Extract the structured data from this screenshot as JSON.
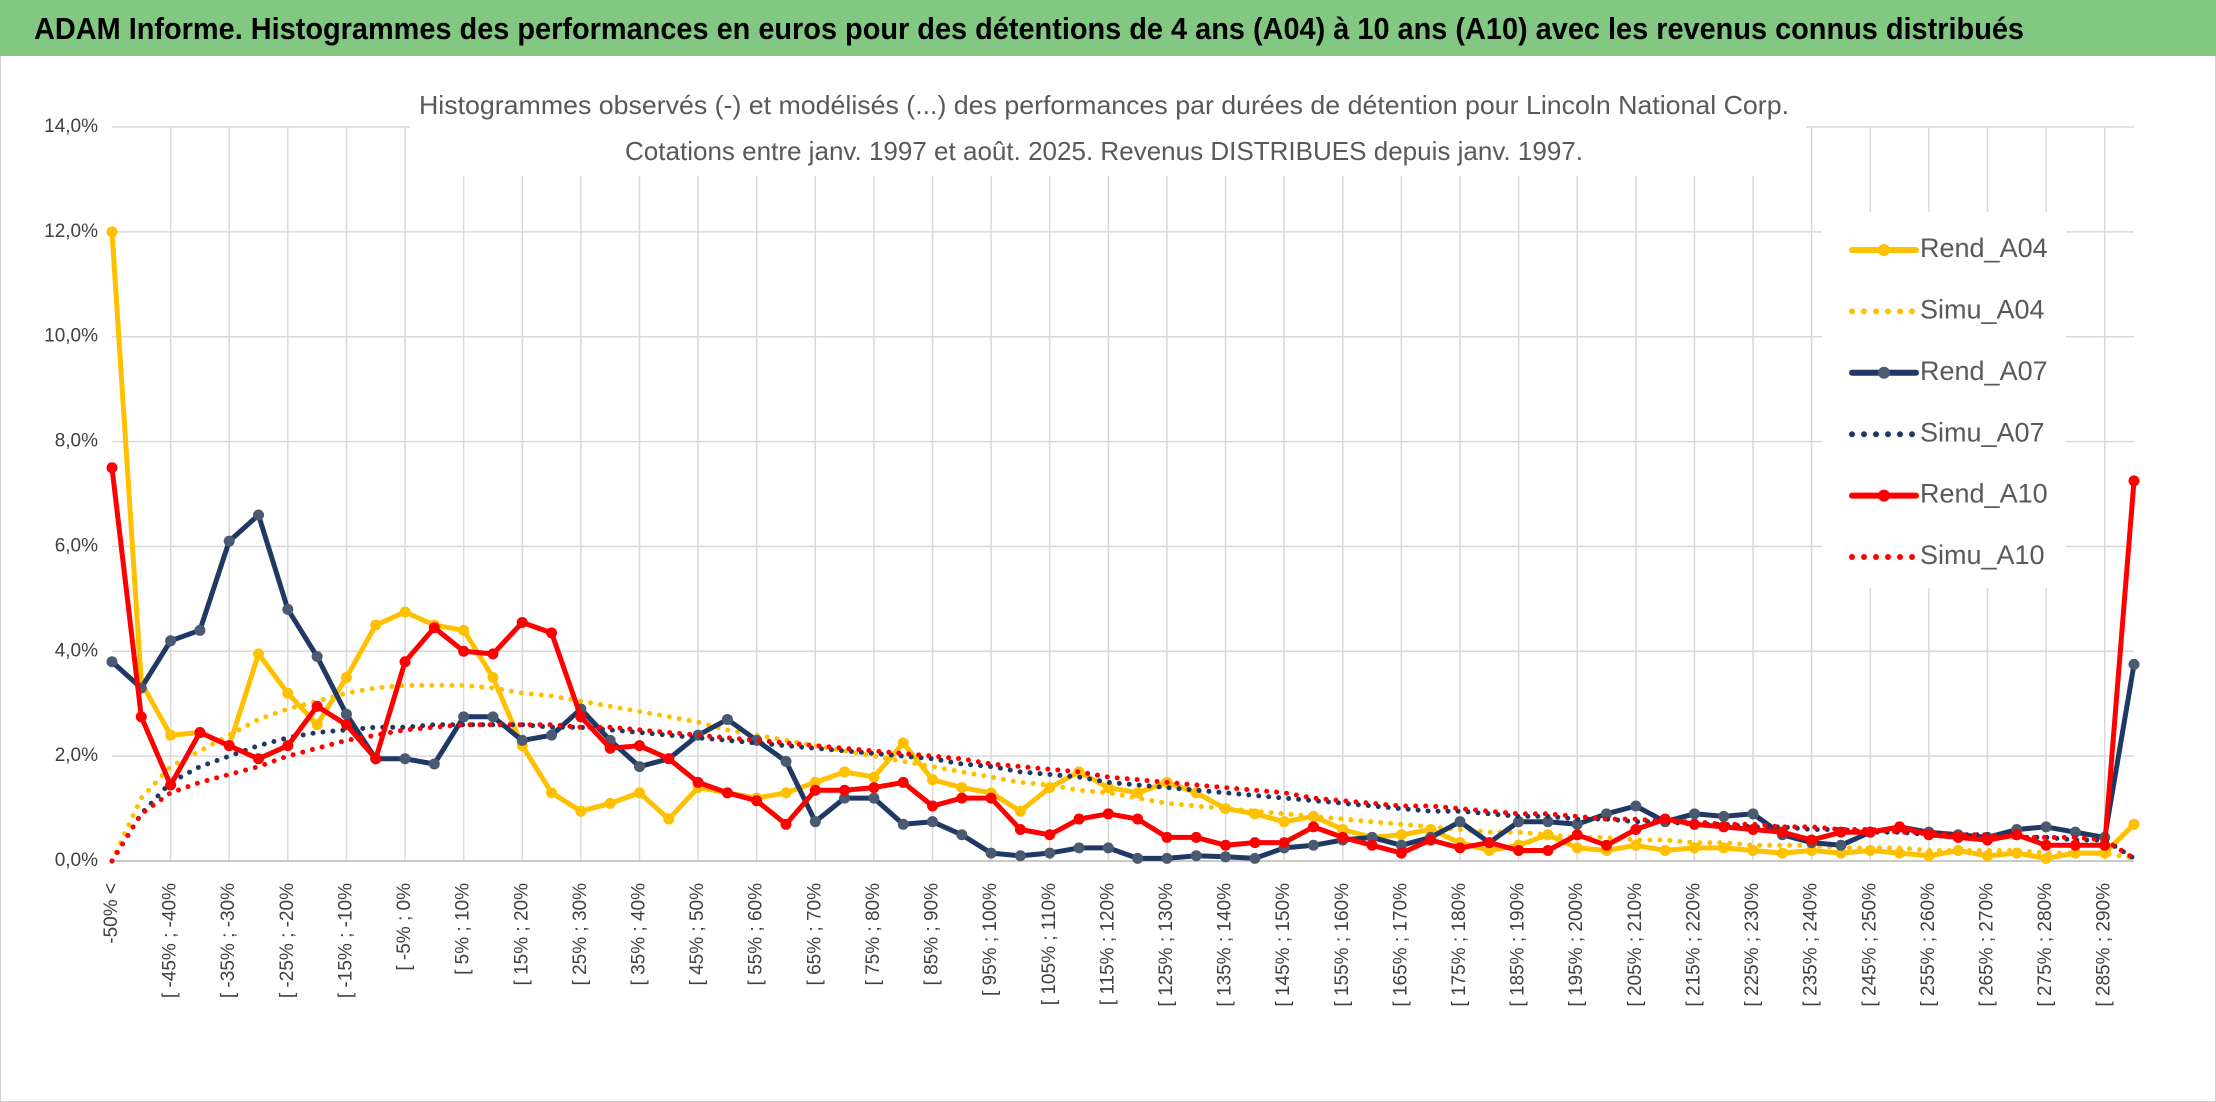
{
  "header": {
    "title": "ADAM Informe. Histogrammes des performances en euros pour des détentions de 4 ans (A04) à 10 ans (A10) avec les revenus connus distribués"
  },
  "chart_data": {
    "type": "line",
    "title": "Histogrammes observés (-) et modélisés (...) des performances par durées de détention pour Lincoln National Corp.",
    "subtitle": "Cotations entre janv. 1997 et août. 2025. Revenus DISTRIBUES depuis janv. 1997.",
    "categories": [
      "-50% <",
      null,
      "[ -45% ; -40%",
      null,
      "[ -35% ; -30%",
      null,
      "[ -25% ; -20%",
      null,
      "[ -15% ; -10%",
      null,
      "[ -5% ; 0%",
      null,
      "[ 5% ; 10%",
      null,
      "[ 15% ; 20%",
      null,
      "[ 25% ; 30%",
      null,
      "[ 35% ; 40%",
      null,
      "[ 45% ; 50%",
      null,
      "[ 55% ; 60%",
      null,
      "[ 65% ; 70%",
      null,
      "[ 75% ; 80%",
      null,
      "[ 85% ; 90%",
      null,
      "[ 95% ; 100%",
      null,
      "[ 105% ; 110%",
      null,
      "[ 115% ; 120%",
      null,
      "[ 125% ; 130%",
      null,
      "[ 135% ; 140%",
      null,
      "[ 145% ; 150%",
      null,
      "[ 155% ; 160%",
      null,
      "[ 165% ; 170%",
      null,
      "[ 175% ; 180%",
      null,
      "[ 185% ; 190%",
      null,
      "[ 195% ; 200%",
      null,
      "[ 205% ; 210%",
      null,
      "[ 215% ; 220%",
      null,
      "[ 225% ; 230%",
      null,
      "[ 235% ; 240%",
      null,
      "[ 245% ; 250%",
      null,
      "[ 255% ; 260%",
      null,
      "[ 265% ; 270%",
      null,
      "[ 275% ; 280%",
      null,
      "[ 285% ; 290%",
      null
    ],
    "series": [
      {
        "name": "Rend_A04",
        "color": "#ffc000",
        "style": "solid",
        "markers": true,
        "values": [
          12.0,
          3.4,
          2.4,
          2.45,
          2.2,
          3.95,
          3.2,
          2.6,
          3.5,
          4.5,
          4.75,
          4.5,
          4.4,
          3.5,
          2.2,
          1.3,
          0.95,
          1.1,
          1.3,
          0.8,
          1.4,
          1.3,
          1.2,
          1.3,
          1.5,
          1.7,
          1.6,
          2.25,
          1.55,
          1.4,
          1.3,
          0.95,
          1.4,
          1.7,
          1.4,
          1.3,
          1.5,
          1.3,
          1.0,
          0.9,
          0.75,
          0.85,
          0.6,
          0.45,
          0.5,
          0.6,
          0.35,
          0.2,
          0.3,
          0.5,
          0.25,
          0.2,
          0.3,
          0.2,
          0.25,
          0.25,
          0.2,
          0.15,
          0.2,
          0.15,
          0.2,
          0.15,
          0.1,
          0.2,
          0.1,
          0.15,
          0.05,
          0.15,
          0.15,
          0.7
        ]
      },
      {
        "name": "Simu_A04",
        "color": "#ffc000",
        "style": "dotted",
        "markers": false,
        "values": [
          0,
          1.2,
          1.8,
          2.1,
          2.4,
          2.7,
          2.9,
          3.05,
          3.2,
          3.3,
          3.35,
          3.35,
          3.35,
          3.3,
          3.2,
          3.15,
          3.05,
          2.95,
          2.85,
          2.75,
          2.65,
          2.5,
          2.4,
          2.3,
          2.2,
          2.1,
          2.0,
          1.9,
          1.8,
          1.7,
          1.6,
          1.5,
          1.45,
          1.35,
          1.3,
          1.2,
          1.1,
          1.05,
          1.0,
          0.95,
          0.9,
          0.85,
          0.8,
          0.75,
          0.7,
          0.65,
          0.6,
          0.55,
          0.55,
          0.5,
          0.45,
          0.45,
          0.4,
          0.4,
          0.35,
          0.35,
          0.3,
          0.3,
          0.3,
          0.25,
          0.25,
          0.25,
          0.2,
          0.2,
          0.2,
          0.2,
          0.15,
          0.15,
          0.15,
          0.05
        ]
      },
      {
        "name": "Rend_A07",
        "color": "#1f3864",
        "marker_color": "#4a5a70",
        "style": "solid",
        "markers": true,
        "values": [
          3.8,
          3.3,
          4.2,
          4.4,
          6.1,
          6.6,
          4.8,
          3.9,
          2.8,
          1.95,
          1.95,
          1.85,
          2.75,
          2.75,
          2.3,
          2.4,
          2.9,
          2.3,
          1.8,
          1.95,
          2.4,
          2.7,
          2.3,
          1.9,
          0.75,
          1.2,
          1.2,
          0.7,
          0.75,
          0.5,
          0.15,
          0.1,
          0.15,
          0.25,
          0.25,
          0.05,
          0.05,
          0.1,
          0.08,
          0.05,
          0.25,
          0.3,
          0.4,
          0.45,
          0.3,
          0.45,
          0.75,
          0.35,
          0.75,
          0.75,
          0.7,
          0.9,
          1.05,
          0.75,
          0.9,
          0.85,
          0.9,
          0.5,
          0.35,
          0.3,
          0.55,
          0.65,
          0.55,
          0.5,
          0.45,
          0.6,
          0.65,
          0.55,
          0.45,
          3.75
        ]
      },
      {
        "name": "Simu_A07",
        "color": "#1f3864",
        "style": "dotted",
        "markers": false,
        "values": [
          0,
          0.9,
          1.5,
          1.8,
          2.0,
          2.2,
          2.35,
          2.45,
          2.5,
          2.55,
          2.55,
          2.6,
          2.6,
          2.6,
          2.6,
          2.55,
          2.55,
          2.5,
          2.45,
          2.4,
          2.35,
          2.3,
          2.25,
          2.2,
          2.15,
          2.1,
          2.05,
          2.0,
          1.95,
          1.85,
          1.8,
          1.7,
          1.65,
          1.6,
          1.5,
          1.45,
          1.4,
          1.35,
          1.3,
          1.25,
          1.2,
          1.15,
          1.1,
          1.05,
          1.0,
          0.95,
          0.95,
          0.9,
          0.85,
          0.85,
          0.8,
          0.8,
          0.75,
          0.75,
          0.7,
          0.7,
          0.65,
          0.65,
          0.6,
          0.6,
          0.55,
          0.55,
          0.5,
          0.5,
          0.5,
          0.45,
          0.45,
          0.4,
          0.4,
          0.05
        ]
      },
      {
        "name": "Rend_A10",
        "color": "#ff0000",
        "style": "solid",
        "markers": true,
        "values": [
          7.5,
          2.75,
          1.45,
          2.45,
          2.2,
          1.95,
          2.2,
          2.95,
          2.6,
          1.95,
          3.8,
          4.45,
          4.0,
          3.95,
          4.55,
          4.35,
          2.75,
          2.15,
          2.2,
          1.95,
          1.5,
          1.3,
          1.15,
          0.7,
          1.35,
          1.35,
          1.4,
          1.5,
          1.05,
          1.2,
          1.2,
          0.6,
          0.5,
          0.8,
          0.9,
          0.8,
          0.45,
          0.45,
          0.3,
          0.35,
          0.35,
          0.65,
          0.45,
          0.3,
          0.15,
          0.4,
          0.25,
          0.35,
          0.2,
          0.2,
          0.5,
          0.3,
          0.6,
          0.8,
          0.7,
          0.65,
          0.6,
          0.55,
          0.4,
          0.55,
          0.55,
          0.65,
          0.5,
          0.45,
          0.4,
          0.5,
          0.3,
          0.3,
          0.3,
          7.25
        ]
      },
      {
        "name": "Simu_A10",
        "color": "#ff0000",
        "style": "dotted",
        "markers": false,
        "values": [
          0,
          0.9,
          1.3,
          1.5,
          1.65,
          1.8,
          2.0,
          2.15,
          2.3,
          2.4,
          2.5,
          2.55,
          2.6,
          2.6,
          2.6,
          2.6,
          2.55,
          2.55,
          2.5,
          2.45,
          2.4,
          2.35,
          2.3,
          2.25,
          2.2,
          2.15,
          2.1,
          2.05,
          2.0,
          1.95,
          1.85,
          1.8,
          1.75,
          1.7,
          1.6,
          1.55,
          1.5,
          1.45,
          1.4,
          1.35,
          1.3,
          1.2,
          1.15,
          1.1,
          1.05,
          1.05,
          1.0,
          0.95,
          0.9,
          0.9,
          0.85,
          0.8,
          0.8,
          0.75,
          0.75,
          0.7,
          0.7,
          0.65,
          0.65,
          0.6,
          0.6,
          0.55,
          0.55,
          0.5,
          0.5,
          0.45,
          0.45,
          0.45,
          0.4,
          0.05
        ]
      }
    ],
    "ylim": [
      0,
      14
    ],
    "yticks": [
      {
        "value": 0,
        "label": "0,0%"
      },
      {
        "value": 2,
        "label": "2,0%"
      },
      {
        "value": 4,
        "label": "4,0%"
      },
      {
        "value": 6,
        "label": "6,0%"
      },
      {
        "value": 8,
        "label": "8,0%"
      },
      {
        "value": 10,
        "label": "10,0%"
      },
      {
        "value": 12,
        "label": "12,0%"
      },
      {
        "value": 14,
        "label": "14,0%"
      }
    ],
    "grid": true,
    "legend": "right"
  }
}
